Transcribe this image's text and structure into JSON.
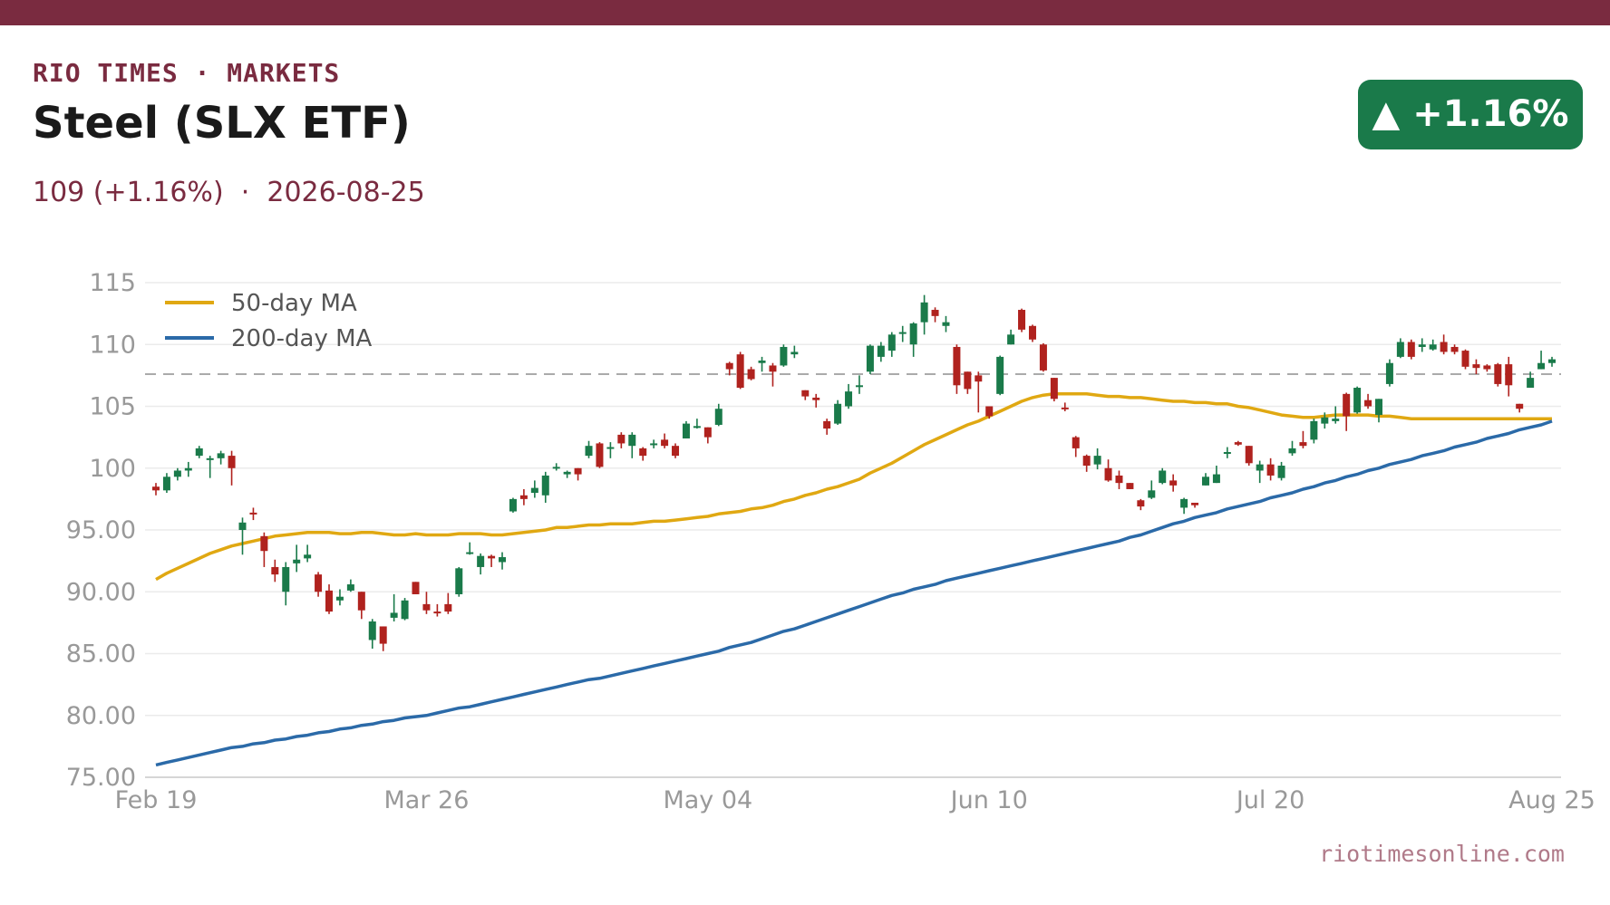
{
  "header": {
    "brand": "RIO TIMES · MARKETS",
    "title": "Steel (SLX ETF)",
    "price": "109 (+1.16%)",
    "separator": "·",
    "date": "2026-08-25",
    "badge": "▲ +1.16%",
    "site": "riotimesonline.com"
  },
  "colors": {
    "brand": "#7a2b40",
    "up": "#1a7a4a",
    "down": "#b0221e",
    "ma50": "#e0a812",
    "ma200": "#2b6aa8",
    "grid": "#ebebeb",
    "tick": "#999999",
    "reference": "#aaaaaa"
  },
  "chart_data": {
    "type": "candlestick",
    "ylim": [
      75,
      115
    ],
    "y_ticks": [
      "75.00",
      "80.00",
      "85.00",
      "90.00",
      "95.00",
      "100",
      "105",
      "110",
      "115"
    ],
    "y_tick_values": [
      75,
      80,
      85,
      90,
      95,
      100,
      105,
      110,
      115
    ],
    "x_ticks": [
      "Feb 19",
      "Mar 26",
      "May 04",
      "Jun 10",
      "Jul 20",
      "Aug 25"
    ],
    "x_tick_index": [
      0,
      25,
      51,
      77,
      103,
      129
    ],
    "reference_line": 107.6,
    "legend": {
      "position": "top-left",
      "items": [
        "50-day MA",
        "200-day MA"
      ]
    },
    "candles": [
      [
        98.5,
        98.2,
        98.8,
        97.8
      ],
      [
        98.2,
        99.3,
        99.6,
        98.0
      ],
      [
        99.3,
        99.8,
        100.0,
        99.0
      ],
      [
        99.8,
        100.0,
        100.5,
        99.3
      ],
      [
        101.0,
        101.6,
        101.8,
        100.8
      ],
      [
        100.8,
        100.8,
        101.0,
        99.2
      ],
      [
        100.8,
        101.2,
        101.4,
        100.3
      ],
      [
        101.0,
        100.0,
        101.4,
        98.6
      ],
      [
        95.0,
        95.6,
        96.0,
        93.0
      ],
      [
        96.4,
        96.3,
        96.8,
        95.8
      ],
      [
        94.5,
        93.3,
        94.8,
        92.0
      ],
      [
        92.0,
        91.4,
        92.6,
        90.8
      ],
      [
        90.0,
        92.0,
        92.4,
        88.9
      ],
      [
        92.3,
        92.6,
        93.8,
        91.6
      ],
      [
        92.7,
        93.0,
        93.8,
        92.4
      ],
      [
        91.4,
        90.0,
        91.6,
        89.6
      ],
      [
        90.1,
        88.4,
        90.6,
        88.2
      ],
      [
        89.3,
        89.6,
        90.2,
        88.9
      ],
      [
        90.1,
        90.6,
        91.0,
        90.0
      ],
      [
        90.0,
        88.5,
        90.0,
        87.8
      ],
      [
        86.1,
        87.6,
        87.8,
        85.4
      ],
      [
        87.2,
        85.8,
        87.2,
        85.2
      ],
      [
        87.9,
        88.3,
        89.8,
        87.6
      ],
      [
        87.8,
        89.3,
        89.5,
        87.7
      ],
      [
        90.8,
        89.8,
        90.8,
        89.8
      ],
      [
        89.0,
        88.5,
        90.0,
        88.2
      ],
      [
        88.4,
        88.3,
        89.0,
        88.0
      ],
      [
        89.0,
        88.4,
        89.9,
        88.2
      ],
      [
        89.8,
        91.9,
        92.0,
        89.6
      ],
      [
        93.1,
        93.2,
        94.0,
        93.0
      ],
      [
        92.0,
        92.9,
        93.1,
        91.4
      ],
      [
        92.9,
        92.7,
        93.0,
        92.0
      ],
      [
        92.4,
        92.8,
        93.2,
        91.8
      ],
      [
        96.5,
        97.5,
        97.6,
        96.4
      ],
      [
        97.8,
        97.5,
        98.3,
        97.0
      ],
      [
        98.0,
        98.4,
        99.0,
        97.6
      ],
      [
        97.8,
        99.4,
        99.7,
        97.2
      ],
      [
        100.0,
        100.1,
        100.4,
        99.8
      ],
      [
        99.5,
        99.7,
        99.8,
        99.2
      ],
      [
        100.0,
        99.5,
        100.0,
        99.0
      ],
      [
        101.0,
        101.8,
        102.2,
        100.8
      ],
      [
        102.0,
        100.1,
        102.1,
        100.0
      ],
      [
        101.6,
        101.7,
        102.1,
        100.8
      ],
      [
        102.7,
        102.0,
        102.9,
        101.6
      ],
      [
        101.8,
        102.7,
        102.9,
        100.8
      ],
      [
        101.6,
        101.0,
        101.7,
        100.6
      ],
      [
        102.0,
        102.0,
        102.3,
        101.6
      ],
      [
        102.3,
        101.8,
        102.8,
        101.6
      ],
      [
        101.8,
        101.0,
        102.0,
        100.8
      ],
      [
        102.4,
        103.6,
        103.8,
        102.4
      ],
      [
        103.3,
        103.4,
        104.0,
        103.2
      ],
      [
        103.3,
        102.5,
        103.3,
        102.0
      ],
      [
        103.5,
        104.8,
        105.2,
        103.4
      ],
      [
        108.5,
        108.0,
        108.6,
        107.5
      ],
      [
        109.2,
        106.5,
        109.4,
        106.4
      ],
      [
        108.0,
        107.2,
        108.2,
        107.1
      ],
      [
        108.5,
        108.7,
        109.0,
        107.8
      ],
      [
        108.3,
        107.8,
        108.5,
        106.6
      ],
      [
        108.3,
        109.8,
        110.0,
        108.2
      ],
      [
        109.2,
        109.4,
        109.9,
        108.9
      ],
      [
        106.3,
        105.8,
        106.3,
        105.5
      ],
      [
        105.7,
        105.5,
        106.0,
        104.9
      ],
      [
        103.8,
        103.2,
        104.0,
        102.7
      ],
      [
        103.6,
        105.2,
        105.5,
        103.5
      ],
      [
        105.0,
        106.2,
        106.8,
        104.8
      ],
      [
        106.6,
        106.7,
        107.5,
        106.0
      ],
      [
        107.8,
        109.9,
        110.0,
        107.6
      ],
      [
        109.0,
        109.9,
        110.2,
        108.6
      ],
      [
        109.5,
        110.8,
        111.0,
        109.0
      ],
      [
        110.9,
        111.0,
        111.5,
        110.2
      ],
      [
        110.0,
        111.7,
        111.8,
        109.0
      ],
      [
        111.8,
        113.4,
        114.0,
        110.8
      ],
      [
        112.8,
        112.3,
        113.0,
        111.8
      ],
      [
        111.5,
        111.8,
        112.3,
        111.0
      ],
      [
        109.8,
        106.7,
        110.0,
        106.0
      ],
      [
        107.8,
        106.4,
        107.8,
        106.0
      ],
      [
        107.5,
        107.0,
        107.8,
        104.5
      ],
      [
        105.0,
        104.2,
        105.0,
        104.0
      ],
      [
        106.0,
        109.0,
        109.1,
        105.9
      ],
      [
        110.0,
        110.8,
        111.2,
        110.0
      ],
      [
        112.8,
        111.2,
        112.9,
        111.0
      ],
      [
        111.5,
        110.4,
        111.6,
        110.2
      ],
      [
        110.0,
        107.9,
        110.1,
        107.8
      ],
      [
        107.3,
        105.6,
        107.3,
        105.4
      ],
      [
        104.9,
        104.8,
        105.3,
        104.6
      ],
      [
        102.5,
        101.6,
        102.6,
        100.9
      ],
      [
        101.0,
        100.2,
        101.1,
        99.7
      ],
      [
        100.3,
        101.0,
        101.6,
        99.9
      ],
      [
        100.0,
        99.0,
        100.7,
        98.9
      ],
      [
        99.4,
        98.8,
        99.8,
        98.3
      ],
      [
        98.8,
        98.3,
        98.8,
        98.3
      ],
      [
        97.4,
        96.9,
        97.5,
        96.6
      ],
      [
        97.6,
        98.2,
        99.0,
        97.5
      ],
      [
        98.8,
        99.8,
        100.0,
        98.7
      ],
      [
        99.0,
        98.6,
        99.5,
        98.1
      ],
      [
        96.8,
        97.5,
        97.6,
        96.3
      ],
      [
        97.2,
        97.0,
        97.2,
        96.8
      ],
      [
        98.6,
        99.3,
        99.6,
        98.6
      ],
      [
        98.8,
        99.5,
        100.2,
        98.8
      ],
      [
        101.2,
        101.3,
        101.7,
        100.8
      ],
      [
        102.1,
        101.9,
        102.2,
        101.8
      ],
      [
        101.8,
        100.4,
        101.8,
        100.2
      ],
      [
        99.8,
        100.3,
        100.6,
        98.8
      ],
      [
        100.3,
        99.4,
        100.8,
        99.0
      ],
      [
        99.2,
        100.2,
        100.5,
        99.0
      ],
      [
        101.2,
        101.6,
        102.2,
        101.0
      ],
      [
        102.1,
        101.8,
        103.0,
        101.6
      ],
      [
        102.3,
        103.8,
        104.0,
        102.0
      ],
      [
        103.6,
        104.1,
        104.5,
        103.2
      ],
      [
        103.8,
        104.0,
        105.0,
        103.6
      ],
      [
        106.0,
        104.2,
        106.1,
        103.0
      ],
      [
        104.5,
        106.5,
        106.6,
        104.4
      ],
      [
        105.5,
        105.0,
        106.0,
        104.8
      ],
      [
        104.3,
        105.6,
        105.6,
        103.7
      ],
      [
        106.8,
        108.5,
        108.8,
        106.6
      ],
      [
        109.0,
        110.2,
        110.5,
        108.9
      ],
      [
        110.2,
        109.0,
        110.4,
        108.8
      ],
      [
        109.8,
        110.0,
        110.5,
        109.4
      ],
      [
        109.6,
        110.0,
        110.4,
        109.5
      ],
      [
        110.2,
        109.4,
        110.8,
        109.2
      ],
      [
        109.8,
        109.4,
        110.0,
        109.2
      ],
      [
        109.5,
        108.2,
        109.6,
        108.0
      ],
      [
        108.4,
        108.1,
        108.8,
        107.6
      ],
      [
        108.3,
        108.0,
        108.4,
        107.8
      ],
      [
        108.4,
        106.8,
        108.5,
        106.6
      ],
      [
        108.4,
        106.7,
        109.0,
        105.8
      ],
      [
        105.2,
        104.8,
        105.2,
        104.5
      ],
      [
        106.5,
        107.3,
        107.8,
        106.5
      ],
      [
        108.0,
        108.5,
        109.5,
        108.0
      ],
      [
        108.5,
        108.8,
        109.0,
        108.2
      ]
    ],
    "series": [
      {
        "name": "50-day MA",
        "values": [
          91.0,
          91.5,
          91.9,
          92.3,
          92.7,
          93.1,
          93.4,
          93.7,
          93.9,
          94.1,
          94.3,
          94.5,
          94.6,
          94.7,
          94.8,
          94.8,
          94.8,
          94.7,
          94.7,
          94.8,
          94.8,
          94.7,
          94.6,
          94.6,
          94.7,
          94.6,
          94.6,
          94.6,
          94.7,
          94.7,
          94.7,
          94.6,
          94.6,
          94.7,
          94.8,
          94.9,
          95.0,
          95.2,
          95.2,
          95.3,
          95.4,
          95.4,
          95.5,
          95.5,
          95.5,
          95.6,
          95.7,
          95.7,
          95.8,
          95.9,
          96.0,
          96.1,
          96.3,
          96.4,
          96.5,
          96.7,
          96.8,
          97.0,
          97.3,
          97.5,
          97.8,
          98.0,
          98.3,
          98.5,
          98.8,
          99.1,
          99.6,
          100.0,
          100.4,
          100.9,
          101.4,
          101.9,
          102.3,
          102.7,
          103.1,
          103.5,
          103.8,
          104.2,
          104.6,
          105.0,
          105.4,
          105.7,
          105.9,
          106.0,
          106.0,
          106.0,
          106.0,
          105.9,
          105.8,
          105.8,
          105.7,
          105.7,
          105.6,
          105.5,
          105.4,
          105.4,
          105.3,
          105.3,
          105.2,
          105.2,
          105.0,
          104.9,
          104.7,
          104.5,
          104.3,
          104.2,
          104.1,
          104.1,
          104.2,
          104.3,
          104.3,
          104.3,
          104.3,
          104.2,
          104.2,
          104.1,
          104.0,
          104.0,
          104.0,
          104.0,
          104.0,
          104.0,
          104.0,
          104.0,
          104.0,
          104.0,
          104.0,
          104.0,
          104.0,
          104.0
        ]
      },
      {
        "name": "200-day MA",
        "values": [
          76.0,
          76.2,
          76.4,
          76.6,
          76.8,
          77.0,
          77.2,
          77.4,
          77.5,
          77.7,
          77.8,
          78.0,
          78.1,
          78.3,
          78.4,
          78.6,
          78.7,
          78.9,
          79.0,
          79.2,
          79.3,
          79.5,
          79.6,
          79.8,
          79.9,
          80.0,
          80.2,
          80.4,
          80.6,
          80.7,
          80.9,
          81.1,
          81.3,
          81.5,
          81.7,
          81.9,
          82.1,
          82.3,
          82.5,
          82.7,
          82.9,
          83.0,
          83.2,
          83.4,
          83.6,
          83.8,
          84.0,
          84.2,
          84.4,
          84.6,
          84.8,
          85.0,
          85.2,
          85.5,
          85.7,
          85.9,
          86.2,
          86.5,
          86.8,
          87.0,
          87.3,
          87.6,
          87.9,
          88.2,
          88.5,
          88.8,
          89.1,
          89.4,
          89.7,
          89.9,
          90.2,
          90.4,
          90.6,
          90.9,
          91.1,
          91.3,
          91.5,
          91.7,
          91.9,
          92.1,
          92.3,
          92.5,
          92.7,
          92.9,
          93.1,
          93.3,
          93.5,
          93.7,
          93.9,
          94.1,
          94.4,
          94.6,
          94.9,
          95.2,
          95.5,
          95.7,
          96.0,
          96.2,
          96.4,
          96.7,
          96.9,
          97.1,
          97.3,
          97.6,
          97.8,
          98.0,
          98.3,
          98.5,
          98.8,
          99.0,
          99.3,
          99.5,
          99.8,
          100.0,
          100.3,
          100.5,
          100.7,
          101.0,
          101.2,
          101.4,
          101.7,
          101.9,
          102.1,
          102.4,
          102.6,
          102.8,
          103.1,
          103.3,
          103.5,
          103.8
        ]
      }
    ]
  }
}
